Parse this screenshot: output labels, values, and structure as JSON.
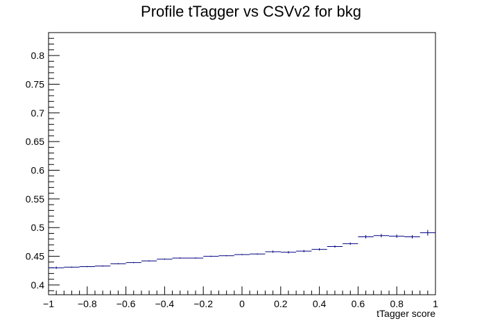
{
  "chart_data": {
    "type": "scatter",
    "title": "Profile tTagger vs CSVv2 for bkg",
    "xlabel": "tTagger score",
    "ylabel": "",
    "xlim": [
      -1,
      1
    ],
    "ylim": [
      0.383,
      0.84
    ],
    "x_ticks": [
      -1,
      -0.8,
      -0.6,
      -0.4,
      -0.2,
      0,
      0.2,
      0.4,
      0.6,
      0.8,
      1
    ],
    "x_tick_labels": [
      "−1",
      "−0.8",
      "−0.6",
      "−0.4",
      "−0.2",
      "0",
      "0.2",
      "0.4",
      "0.6",
      "0.8",
      "1"
    ],
    "y_ticks": [
      0.4,
      0.45,
      0.5,
      0.55,
      0.6,
      0.65,
      0.7,
      0.75,
      0.8
    ],
    "y_tick_labels": [
      "0.4",
      "0.45",
      "0.5",
      "0.55",
      "0.6",
      "0.65",
      "0.7",
      "0.75",
      "0.8"
    ],
    "grid": false,
    "marker_color": "#000080",
    "bin_width": 0.08,
    "series": [
      {
        "x": [
          -0.96,
          -0.88,
          -0.8,
          -0.72,
          -0.64,
          -0.56,
          -0.48,
          -0.4,
          -0.32,
          -0.24,
          -0.16,
          -0.08,
          0.0,
          0.08,
          0.16,
          0.24,
          0.32,
          0.4,
          0.48,
          0.56,
          0.64,
          0.72,
          0.8,
          0.88,
          0.96
        ],
        "y": [
          0.43,
          0.431,
          0.432,
          0.433,
          0.437,
          0.439,
          0.442,
          0.445,
          0.447,
          0.447,
          0.45,
          0.451,
          0.453,
          0.454,
          0.458,
          0.457,
          0.459,
          0.462,
          0.467,
          0.472,
          0.484,
          0.486,
          0.485,
          0.484,
          0.491
        ],
        "yerr": [
          0.002,
          0.001,
          0.001,
          0.001,
          0.001,
          0.001,
          0.001,
          0.001,
          0.001,
          0.001,
          0.001,
          0.001,
          0.001,
          0.001,
          0.002,
          0.002,
          0.002,
          0.002,
          0.002,
          0.002,
          0.003,
          0.003,
          0.003,
          0.003,
          0.005
        ]
      }
    ]
  }
}
